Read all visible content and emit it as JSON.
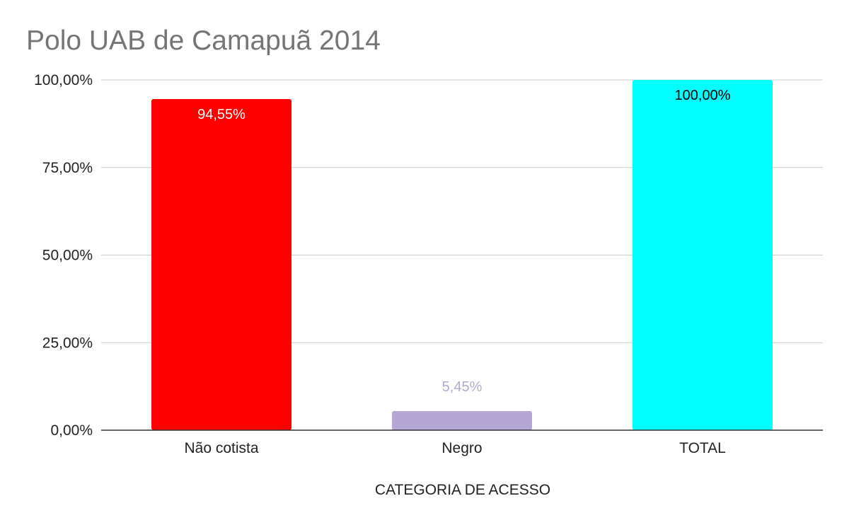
{
  "chart_data": {
    "type": "bar",
    "title": "Polo UAB de Camapuã 2014",
    "xlabel": "CATEGORIA DE ACESSO",
    "ylabel": "",
    "categories": [
      "Não cotista",
      "Negro",
      "TOTAL"
    ],
    "values": [
      94.55,
      5.45,
      100.0
    ],
    "data_labels": [
      "94,55%",
      "5,45%",
      "100,00%"
    ],
    "bar_colors": [
      "#ff0000",
      "#b4a7d6",
      "#00ffff"
    ],
    "data_label_colors": [
      "#ffffff",
      "#b4a7d6",
      "#000000"
    ],
    "data_label_position": [
      "inside",
      "outside",
      "inside"
    ],
    "ylim": [
      0,
      100
    ],
    "yticks": [
      0,
      25,
      50,
      75,
      100
    ],
    "ytick_labels": [
      "0,00%",
      "25,00%",
      "50,00%",
      "75,00%",
      "100,00%"
    ],
    "grid": true,
    "legend": "none"
  }
}
